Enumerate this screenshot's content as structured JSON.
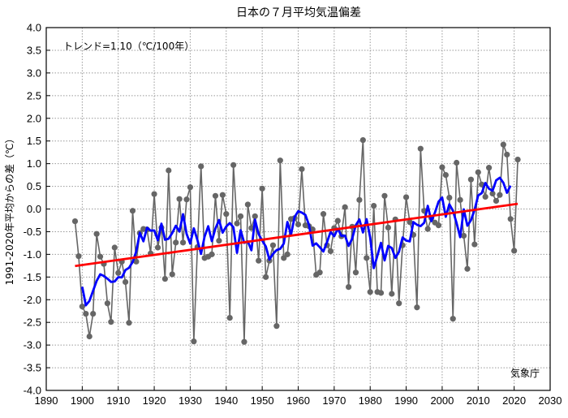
{
  "chart_data": {
    "type": "line",
    "title": "日本の７月平均気温偏差",
    "ylabel": "1991-2020年平均からの差（℃）",
    "xlabel": "",
    "annotation": "トレンド=1.10（℃/100年）",
    "credit": "気象庁",
    "trend_per_century": 1.1,
    "xlim": [
      1890,
      2030
    ],
    "ylim": [
      -4.0,
      4.0
    ],
    "xticks": [
      "1890",
      "1900",
      "1910",
      "1920",
      "1930",
      "1940",
      "1950",
      "1960",
      "1970",
      "1980",
      "1990",
      "2000",
      "2010",
      "2020",
      "2030"
    ],
    "yticks": [
      "4.0",
      "3.5",
      "3.0",
      "2.5",
      "2.0",
      "1.5",
      "1.0",
      "0.5",
      "0.0",
      "-0.5",
      "-1.0",
      "-1.5",
      "-2.0",
      "-2.5",
      "-3.0",
      "-3.5",
      "-4.0"
    ],
    "grid": true,
    "colors": {
      "points": "#666666",
      "running_mean": "#0000ff",
      "trend": "#ff0000"
    },
    "x_start": 1898,
    "values": [
      -0.27,
      -1.04,
      -2.15,
      -2.31,
      -2.81,
      -2.31,
      -0.55,
      -1.05,
      -1.21,
      -2.08,
      -2.49,
      -0.85,
      -1.41,
      -1.16,
      -1.61,
      -2.51,
      -0.04,
      -1.16,
      -0.53,
      -0.44,
      -0.45,
      -0.98,
      0.33,
      -0.85,
      -0.41,
      -1.54,
      0.85,
      -1.44,
      -0.74,
      0.22,
      -0.74,
      0.21,
      0.48,
      -2.92,
      -0.84,
      0.94,
      -1.08,
      -1.05,
      -1.0,
      0.29,
      -0.7,
      0.31,
      -0.11,
      -2.4,
      0.97,
      -0.32,
      -0.16,
      -2.93,
      0.1,
      -0.42,
      -0.16,
      -1.14,
      0.45,
      -1.5,
      -1.14,
      -0.8,
      -2.58,
      1.07,
      -1.08,
      -1.0,
      -0.22,
      -0.2,
      -0.34,
      0.88,
      -0.36,
      -0.38,
      -0.45,
      -1.45,
      -1.4,
      -0.11,
      -0.8,
      -0.93,
      -0.42,
      -0.26,
      -0.6,
      0.04,
      -1.72,
      -0.39,
      -1.4,
      0.2,
      1.52,
      -1.08,
      -1.83,
      0.07,
      -1.83,
      -1.85,
      0.29,
      -0.41,
      -1.87,
      -0.23,
      -2.08,
      -0.8,
      0.26,
      -0.29,
      -0.57,
      -2.17,
      1.33,
      -0.04,
      -0.44,
      -0.2,
      -0.3,
      -0.36,
      0.92,
      0.75,
      0.25,
      -2.42,
      1.02,
      0.2,
      -0.59,
      -1.32,
      0.65,
      -0.78,
      0.81,
      0.54,
      0.27,
      0.91,
      0.34,
      0.18,
      0.31,
      1.42,
      1.2,
      -0.22,
      -0.92,
      1.09
    ]
  }
}
